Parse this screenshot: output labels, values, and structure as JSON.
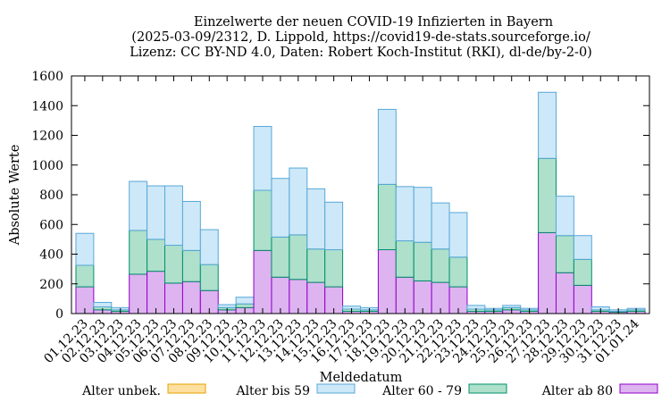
{
  "chart_data": {
    "type": "bar",
    "stacked": true,
    "title_lines": [
      "Einzelwerte der neuen COVID-19 Infizierten in Bayern",
      "(2025-03-09/2312, D. Lippold, https://covid19-de-stats.sourceforge.io/",
      "Lizenz: CC BY-ND 4.0, Daten: Robert Koch-Institut (RKI), dl-de/by-2-0)"
    ],
    "xlabel": "Meldedatum",
    "ylabel": "Absolute Werte",
    "ylim": [
      0,
      1600
    ],
    "yticks": [
      0,
      200,
      400,
      600,
      800,
      1000,
      1200,
      1400,
      1600
    ],
    "grid": false,
    "legend_position": "bottom",
    "categories": [
      "01.12.23",
      "02.12.23",
      "03.12.23",
      "04.12.23",
      "05.12.23",
      "06.12.23",
      "07.12.23",
      "08.12.23",
      "09.12.23",
      "10.12.23",
      "11.12.23",
      "12.12.23",
      "13.12.23",
      "14.12.23",
      "15.12.23",
      "16.12.23",
      "17.12.23",
      "18.12.23",
      "19.12.23",
      "20.12.23",
      "21.12.23",
      "22.12.23",
      "23.12.23",
      "24.12.23",
      "25.12.23",
      "26.12.23",
      "27.12.23",
      "28.12.23",
      "29.12.23",
      "30.12.23",
      "31.12.23",
      "01.01.24"
    ],
    "series": [
      {
        "name": "Alter unbek.",
        "color": "#fde0a0",
        "stroke": "#e8a000",
        "values": [
          0,
          0,
          0,
          0,
          0,
          0,
          0,
          0,
          0,
          0,
          0,
          0,
          0,
          0,
          0,
          0,
          0,
          0,
          0,
          0,
          0,
          0,
          0,
          0,
          0,
          0,
          0,
          0,
          0,
          0,
          0,
          0
        ]
      },
      {
        "name": "Alter ab 80",
        "color": "#ddb3f0",
        "stroke": "#9000c8",
        "values": [
          180,
          25,
          15,
          265,
          285,
          205,
          215,
          155,
          25,
          40,
          425,
          245,
          230,
          210,
          180,
          15,
          15,
          430,
          245,
          220,
          210,
          180,
          15,
          15,
          25,
          15,
          545,
          275,
          190,
          15,
          10,
          15
        ]
      },
      {
        "name": "Alter 60 - 79",
        "color": "#aee0cc",
        "stroke": "#00906a",
        "values": [
          145,
          20,
          10,
          295,
          215,
          255,
          210,
          175,
          15,
          25,
          405,
          270,
          300,
          225,
          250,
          15,
          10,
          440,
          245,
          260,
          225,
          200,
          15,
          10,
          15,
          10,
          500,
          250,
          175,
          10,
          5,
          10
        ]
      },
      {
        "name": "Alter bis 59",
        "color": "#cde8f8",
        "stroke": "#58a8d8",
        "values": [
          215,
          30,
          15,
          330,
          360,
          400,
          330,
          235,
          20,
          45,
          430,
          395,
          450,
          405,
          320,
          20,
          15,
          505,
          365,
          370,
          310,
          300,
          25,
          10,
          15,
          10,
          445,
          265,
          160,
          20,
          10,
          10
        ]
      }
    ],
    "legend_order": [
      "Alter unbek.",
      "Alter bis 59",
      "Alter 60 - 79",
      "Alter ab 80"
    ]
  }
}
